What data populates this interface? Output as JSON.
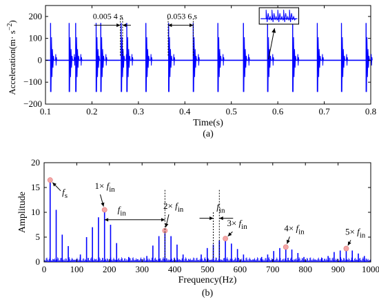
{
  "chart_data": [
    {
      "type": "line",
      "panel_label": "(a)",
      "xlabel": "Time(s)",
      "ylabel": "Acceleration(m· s",
      "ylabel_exp": "−2",
      "ylabel_close": ")",
      "xlim": [
        0.1,
        0.8
      ],
      "ylim": [
        -200,
        250
      ],
      "x_ticks": [
        "0.1",
        "0.2",
        "0.3",
        "0.4",
        "0.5",
        "0.6",
        "0.7",
        "0.8"
      ],
      "y_ticks": [
        "−200",
        "−100",
        "0",
        "100",
        "200"
      ],
      "series_color": "#0000ff",
      "impulse_times_s": [
        0.111,
        0.151,
        0.165,
        0.209,
        0.219,
        0.263,
        0.275,
        0.316,
        0.365,
        0.418,
        0.471,
        0.526,
        0.578,
        0.632,
        0.685,
        0.737,
        0.79
      ],
      "impulse_amplitude": 170,
      "annotations": [
        {
          "text": "0.005 4 s",
          "x_from": 0.261,
          "x_to": 0.266,
          "level": 160
        },
        {
          "text": "0.053 6 s",
          "x_from": 0.364,
          "x_to": 0.418,
          "level": 160
        }
      ],
      "inset": {
        "x_range": [
          0.56,
          0.645
        ],
        "y_range": [
          165,
          240
        ],
        "arrow_from": [
          0.58,
          5
        ],
        "arrow_to": [
          0.593,
          165
        ]
      }
    },
    {
      "type": "bar",
      "panel_label": "(b)",
      "xlabel": "Frequency(Hz)",
      "ylabel": "Amplitude",
      "xlim": [
        0,
        1000
      ],
      "ylim": [
        0,
        20
      ],
      "x_ticks": [
        "0",
        "100",
        "200",
        "300",
        "400",
        "500",
        "600",
        "700",
        "800",
        "900",
        "1000"
      ],
      "y_ticks": [
        "0",
        "5",
        "10",
        "15",
        "20"
      ],
      "series_color": "#0000ff",
      "marker_color": "#f4a6a6",
      "peaks": [
        {
          "f": 18.5,
          "a": 16.5
        },
        {
          "f": 37,
          "a": 10.5
        },
        {
          "f": 55.5,
          "a": 5.5
        },
        {
          "f": 74,
          "a": 3.2
        },
        {
          "f": 111,
          "a": 1.5
        },
        {
          "f": 130,
          "a": 5
        },
        {
          "f": 148,
          "a": 7
        },
        {
          "f": 166.5,
          "a": 9
        },
        {
          "f": 185,
          "a": 10.5
        },
        {
          "f": 203.5,
          "a": 7.5
        },
        {
          "f": 222,
          "a": 3.8
        },
        {
          "f": 259,
          "a": 1
        },
        {
          "f": 314.5,
          "a": 1.2
        },
        {
          "f": 333,
          "a": 3.3
        },
        {
          "f": 351.5,
          "a": 5.2
        },
        {
          "f": 370,
          "a": 6.3
        },
        {
          "f": 388.5,
          "a": 5.2
        },
        {
          "f": 407,
          "a": 3.5
        },
        {
          "f": 425.5,
          "a": 1.5
        },
        {
          "f": 481,
          "a": 1.5
        },
        {
          "f": 499.5,
          "a": 2.8
        },
        {
          "f": 518,
          "a": 3.5
        },
        {
          "f": 536.5,
          "a": 4.3
        },
        {
          "f": 555,
          "a": 4.7
        },
        {
          "f": 573.5,
          "a": 3.7
        },
        {
          "f": 592,
          "a": 2.6
        },
        {
          "f": 610.5,
          "a": 1.5
        },
        {
          "f": 666,
          "a": 1
        },
        {
          "f": 684.5,
          "a": 1.5
        },
        {
          "f": 703,
          "a": 2.2
        },
        {
          "f": 721.5,
          "a": 2.8
        },
        {
          "f": 740,
          "a": 3
        },
        {
          "f": 758.5,
          "a": 2.5
        },
        {
          "f": 777,
          "a": 1.8
        },
        {
          "f": 795.5,
          "a": 1
        },
        {
          "f": 851,
          "a": 0.8
        },
        {
          "f": 869.5,
          "a": 1.2
        },
        {
          "f": 888,
          "a": 2
        },
        {
          "f": 906.5,
          "a": 2.3
        },
        {
          "f": 925,
          "a": 2.7
        },
        {
          "f": 943.5,
          "a": 2.3
        },
        {
          "f": 962,
          "a": 1.7
        },
        {
          "f": 980.5,
          "a": 1.2
        }
      ],
      "markers": [
        {
          "f": 18.5,
          "a": 16.5
        },
        {
          "f": 185,
          "a": 10.5
        },
        {
          "f": 370,
          "a": 6.3
        },
        {
          "f": 555,
          "a": 4.7
        },
        {
          "f": 740,
          "a": 3
        },
        {
          "f": 925,
          "a": 2.7
        }
      ],
      "labels": [
        {
          "text": "f",
          "sub": "s",
          "x": 55,
          "y": 13.5,
          "arrow_to": [
            18.5,
            16.5
          ]
        },
        {
          "text": "1× f",
          "sub": "in",
          "x": 155,
          "y": 14.7,
          "arrow_to": [
            185,
            10.5
          ]
        },
        {
          "text": "2× f",
          "sub": "in",
          "x": 365,
          "y": 10.7,
          "arrow_to": [
            370,
            6.3
          ]
        },
        {
          "text": "3× f",
          "sub": "in",
          "x": 560,
          "y": 7.2,
          "arrow_to": [
            555,
            4.7
          ]
        },
        {
          "text": "4× f",
          "sub": "in",
          "x": 735,
          "y": 6.2,
          "arrow_to": [
            740,
            3
          ]
        },
        {
          "text": "5× f",
          "sub": "in",
          "x": 922,
          "y": 5.5,
          "arrow_to": [
            925,
            2.7
          ]
        }
      ],
      "spacing_annotations": [
        {
          "text": "f",
          "sub": "in",
          "from": 185,
          "to": 370,
          "level": 8.5,
          "label_x": 225,
          "label_y": 9.9
        },
        {
          "text": "f",
          "sub": "in",
          "from": 518,
          "to": 536.5,
          "level": 8.8,
          "label_x": 528,
          "label_y": 10.5
        }
      ]
    }
  ]
}
